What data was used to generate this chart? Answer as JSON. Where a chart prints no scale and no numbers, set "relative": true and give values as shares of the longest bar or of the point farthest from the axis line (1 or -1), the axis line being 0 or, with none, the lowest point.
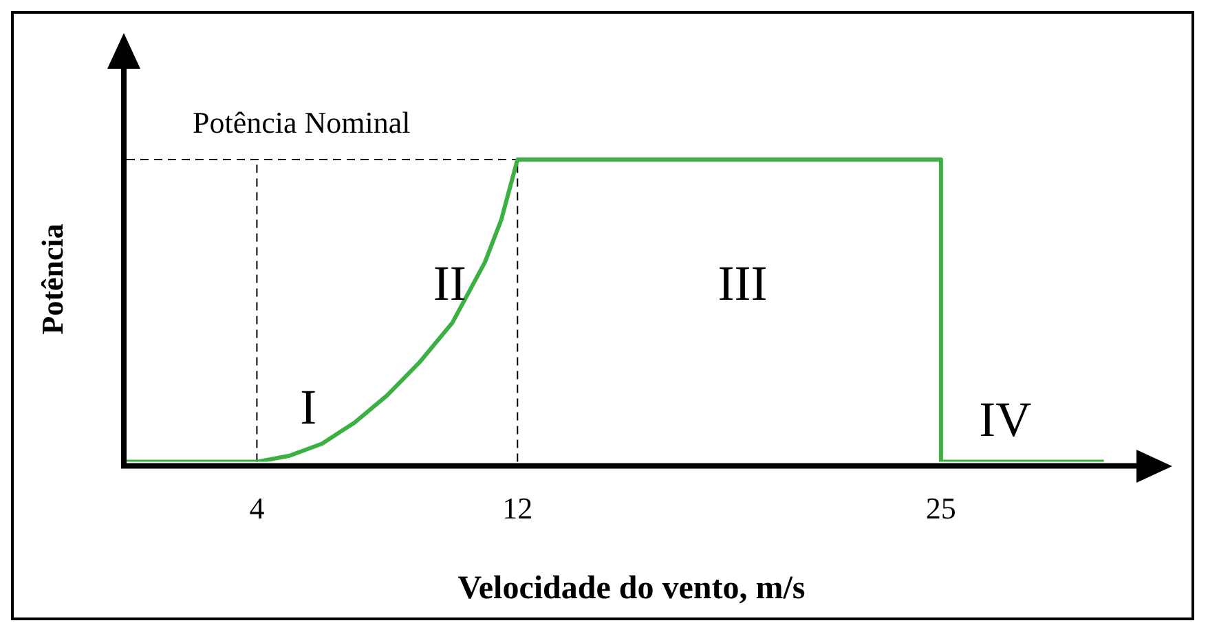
{
  "chart_data": {
    "type": "line",
    "relative": true,
    "xlabel": "Velocidade do vento, m/s",
    "ylabel": "Potência",
    "x": [
      0,
      4,
      5,
      6,
      7,
      8,
      9,
      10,
      11,
      11.5,
      12,
      25,
      25,
      30
    ],
    "series": [
      {
        "color": "#3cb043",
        "values": [
          0,
          0,
          0.02,
          0.06,
          0.13,
          0.22,
          0.33,
          0.46,
          0.66,
          0.8,
          1,
          1,
          0,
          0
        ]
      }
    ],
    "xlim": [
      0,
      31
    ],
    "xticks": [
      4,
      12,
      25
    ],
    "grid": false,
    "legend": false,
    "marker": "none",
    "line_style": "solid",
    "ref_lines": [
      {
        "axis": "y",
        "value": 1,
        "label": "Potência Nominal",
        "line_style": "dashed",
        "color": "#000000"
      },
      {
        "axis": "x",
        "value": 4,
        "line_style": "dashed",
        "color": "#000000"
      },
      {
        "axis": "x",
        "value": 12,
        "line_style": "dashed",
        "color": "#000000"
      }
    ],
    "annotations": [
      "I",
      "II",
      "III",
      "IV"
    ]
  }
}
